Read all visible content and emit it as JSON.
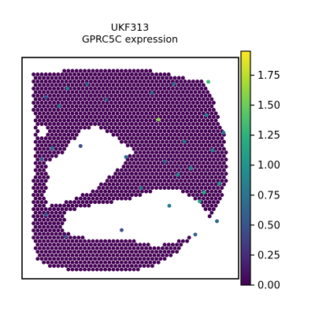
{
  "chart_data": {
    "type": "scatter",
    "title": "UKF313",
    "subtitle": "GPRC5C expression",
    "xlabel": "",
    "ylabel": "",
    "grid": false,
    "colorbar": {
      "colormap": "viridis",
      "range": [
        0.0,
        1.95
      ],
      "ticks": [
        0.0,
        0.25,
        0.5,
        0.75,
        1.0,
        1.25,
        1.5,
        1.75
      ],
      "tick_labels": [
        "0.00",
        "0.25",
        "0.50",
        "0.75",
        "1.00",
        "1.25",
        "1.50",
        "1.75"
      ]
    },
    "background_value": 0.0,
    "highlighted_spots": [
      {
        "x": 0.63,
        "y": 0.72,
        "value": 1.6
      },
      {
        "x": 0.21,
        "y": 0.86,
        "value": 0.8
      },
      {
        "x": 0.86,
        "y": 0.89,
        "value": 1.3
      },
      {
        "x": 0.84,
        "y": 0.39,
        "value": 1.2
      },
      {
        "x": 0.82,
        "y": 0.35,
        "value": 1.15
      },
      {
        "x": 0.91,
        "y": 0.43,
        "value": 0.95
      },
      {
        "x": 0.78,
        "y": 0.5,
        "value": 0.9
      },
      {
        "x": 0.72,
        "y": 0.47,
        "value": 0.9
      },
      {
        "x": 0.88,
        "y": 0.58,
        "value": 0.85
      },
      {
        "x": 0.75,
        "y": 0.62,
        "value": 0.8
      },
      {
        "x": 0.68,
        "y": 0.33,
        "value": 0.8
      },
      {
        "x": 0.93,
        "y": 0.66,
        "value": 0.75
      },
      {
        "x": 0.55,
        "y": 0.41,
        "value": 0.75
      },
      {
        "x": 0.48,
        "y": 0.55,
        "value": 0.7
      },
      {
        "x": 0.14,
        "y": 0.59,
        "value": 0.7
      },
      {
        "x": 0.17,
        "y": 0.78,
        "value": 0.7
      },
      {
        "x": 0.85,
        "y": 0.74,
        "value": 0.85
      },
      {
        "x": 0.6,
        "y": 0.84,
        "value": 0.65
      },
      {
        "x": 0.39,
        "y": 0.81,
        "value": 0.6
      },
      {
        "x": 0.3,
        "y": 0.88,
        "value": 0.6
      },
      {
        "x": 0.11,
        "y": 0.82,
        "value": 0.55
      },
      {
        "x": 0.09,
        "y": 0.54,
        "value": 0.5
      },
      {
        "x": 0.2,
        "y": 0.19,
        "value": 0.5
      },
      {
        "x": 0.11,
        "y": 0.29,
        "value": 0.55
      },
      {
        "x": 0.46,
        "y": 0.22,
        "value": 0.45
      },
      {
        "x": 0.27,
        "y": 0.6,
        "value": 0.45
      },
      {
        "x": 0.8,
        "y": 0.2,
        "value": 0.6
      },
      {
        "x": 0.9,
        "y": 0.26,
        "value": 0.65
      },
      {
        "x": 0.7,
        "y": 0.88,
        "value": 0.7
      },
      {
        "x": 0.66,
        "y": 0.53,
        "value": 0.6
      }
    ]
  }
}
